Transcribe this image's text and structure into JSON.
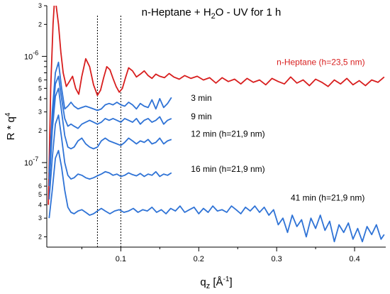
{
  "chart_data": {
    "type": "line",
    "title": {
      "prefix": "n-Heptane + H",
      "sub": "2",
      "suffix": "O - UV for 1 h"
    },
    "xlabel": {
      "base": "q",
      "sub": "z",
      "unit_open": " [Å",
      "sup": "-1",
      "unit_close": "]"
    },
    "ylabel": {
      "base": "R * q",
      "sup": "4"
    },
    "xlim": [
      0.005,
      0.44
    ],
    "ylim": [
      1.6e-08,
      3e-06
    ],
    "yscale": "log",
    "grid": false,
    "x_ticks": [
      {
        "value": 0.1,
        "label": "0.1"
      },
      {
        "value": 0.2,
        "label": "0.2"
      },
      {
        "value": 0.3,
        "label": "0.3"
      },
      {
        "value": 0.4,
        "label": "0.4"
      }
    ],
    "y_major_ticks": [
      {
        "value": 1e-06,
        "base": "10",
        "exp": "-6"
      },
      {
        "value": 1e-07,
        "base": "10",
        "exp": "-7"
      }
    ],
    "y_minor_tick_labels": [
      {
        "value": 3e-06,
        "label": "3"
      },
      {
        "value": 2e-06,
        "label": "2"
      },
      {
        "value": 6e-07,
        "label": "6"
      },
      {
        "value": 5e-07,
        "label": "5"
      },
      {
        "value": 4e-07,
        "label": "4"
      },
      {
        "value": 3e-07,
        "label": "3"
      },
      {
        "value": 2e-07,
        "label": "2"
      },
      {
        "value": 6e-08,
        "label": "6"
      },
      {
        "value": 5e-08,
        "label": "5"
      },
      {
        "value": 4e-08,
        "label": "4"
      },
      {
        "value": 3e-08,
        "label": "3"
      },
      {
        "value": 2e-08,
        "label": "2"
      }
    ],
    "reference_lines_x": [
      0.07,
      0.1
    ],
    "series": [
      {
        "name": "n-Heptane (h=23,5 nm)",
        "color": "#d81e1e",
        "label_at": [
          0.3,
          8.3e-07
        ],
        "x": [
          0.007,
          0.01,
          0.013,
          0.015,
          0.017,
          0.02,
          0.023,
          0.026,
          0.03,
          0.034,
          0.038,
          0.042,
          0.046,
          0.05,
          0.055,
          0.06,
          0.065,
          0.07,
          0.074,
          0.078,
          0.082,
          0.086,
          0.09,
          0.094,
          0.098,
          0.102,
          0.106,
          0.11,
          0.115,
          0.12,
          0.125,
          0.13,
          0.135,
          0.14,
          0.145,
          0.15,
          0.156,
          0.162,
          0.168,
          0.175,
          0.182,
          0.19,
          0.198,
          0.206,
          0.214,
          0.222,
          0.23,
          0.238,
          0.246,
          0.254,
          0.262,
          0.27,
          0.278,
          0.286,
          0.294,
          0.302,
          0.31,
          0.318,
          0.326,
          0.334,
          0.342,
          0.35,
          0.358,
          0.366,
          0.374,
          0.382,
          0.39,
          0.398,
          0.406,
          0.414,
          0.422,
          0.43,
          0.438
        ],
        "y": [
          4e-08,
          5e-07,
          2e-06,
          3.5e-06,
          3e-06,
          2e-06,
          1.1e-06,
          7e-07,
          5.2e-07,
          5.8e-07,
          6.5e-07,
          5e-07,
          4.4e-07,
          6.5e-07,
          9.5e-07,
          8e-07,
          5.4e-07,
          4.3e-07,
          4.8e-07,
          6.3e-07,
          8e-07,
          7.5e-07,
          6.2e-07,
          5.2e-07,
          4.6e-07,
          5e-07,
          6.3e-07,
          7.8e-07,
          7.3e-07,
          6.4e-07,
          6.8e-07,
          7.3e-07,
          6.6e-07,
          6.2e-07,
          6.8e-07,
          6.5e-07,
          6.3e-07,
          6.9e-07,
          6.4e-07,
          6.1e-07,
          6.6e-07,
          6.2e-07,
          6.5e-07,
          6e-07,
          6.3e-07,
          5.6e-07,
          6.3e-07,
          5.8e-07,
          6.1e-07,
          5.5e-07,
          6.2e-07,
          5.7e-07,
          6e-07,
          5.4e-07,
          6.2e-07,
          5.8e-07,
          5.5e-07,
          6.4e-07,
          5.6e-07,
          6e-07,
          5.3e-07,
          6.1e-07,
          5.7e-07,
          5.2e-07,
          6e-07,
          5.5e-07,
          6.2e-07,
          5.4e-07,
          5.9e-07,
          5.3e-07,
          6e-07,
          5.7e-07,
          6.4e-07
        ]
      },
      {
        "name": "3 min",
        "color": "#2f73d6",
        "label_at": [
          0.19,
          3.8e-07
        ],
        "x": [
          0.008,
          0.012,
          0.016,
          0.02,
          0.024,
          0.028,
          0.032,
          0.036,
          0.04,
          0.045,
          0.05,
          0.055,
          0.06,
          0.065,
          0.07,
          0.075,
          0.08,
          0.085,
          0.09,
          0.095,
          0.1,
          0.105,
          0.11,
          0.115,
          0.12,
          0.125,
          0.13,
          0.135,
          0.14,
          0.145,
          0.15,
          0.155,
          0.16,
          0.165
        ],
        "y": [
          8e-08,
          3e-07,
          7e-07,
          8.8e-07,
          5e-07,
          3.2e-07,
          3.4e-07,
          3.7e-07,
          3.4e-07,
          3.2e-07,
          3.3e-07,
          3.4e-07,
          3.3e-07,
          3.2e-07,
          3.1e-07,
          3.2e-07,
          3.5e-07,
          3.6e-07,
          3.5e-07,
          3.7e-07,
          3.5e-07,
          3.4e-07,
          3.7e-07,
          3.5e-07,
          3.2e-07,
          3.6e-07,
          3.4e-07,
          3.3e-07,
          3.9e-07,
          3.2e-07,
          4e-07,
          3.3e-07,
          3.6e-07,
          4.1e-07
        ]
      },
      {
        "name": "9 min",
        "color": "#2f73d6",
        "label_at": [
          0.19,
          2.55e-07
        ],
        "x": [
          0.008,
          0.012,
          0.016,
          0.02,
          0.024,
          0.028,
          0.032,
          0.036,
          0.04,
          0.045,
          0.05,
          0.055,
          0.06,
          0.065,
          0.07,
          0.075,
          0.08,
          0.085,
          0.09,
          0.095,
          0.1,
          0.105,
          0.11,
          0.115,
          0.12,
          0.125,
          0.13,
          0.135,
          0.14,
          0.145,
          0.15,
          0.155,
          0.16,
          0.165
        ],
        "y": [
          7e-08,
          2.5e-07,
          5.5e-07,
          6.5e-07,
          4e-07,
          2.6e-07,
          2.2e-07,
          2.3e-07,
          2.2e-07,
          2.1e-07,
          2.3e-07,
          2.4e-07,
          2.5e-07,
          2.4e-07,
          2.3e-07,
          2.4e-07,
          2.6e-07,
          2.5e-07,
          2.6e-07,
          2.5e-07,
          2.4e-07,
          2.6e-07,
          2.5e-07,
          2.4e-07,
          2.6e-07,
          2.3e-07,
          2.5e-07,
          2.6e-07,
          2.4e-07,
          2.5e-07,
          2.7e-07,
          2.3e-07,
          2.5e-07,
          2.6e-07
        ]
      },
      {
        "name": "12 min (h=21,9 nm)",
        "color": "#2f73d6",
        "label_at": [
          0.19,
          1.75e-07
        ],
        "x": [
          0.008,
          0.012,
          0.016,
          0.02,
          0.024,
          0.028,
          0.032,
          0.036,
          0.04,
          0.045,
          0.05,
          0.055,
          0.06,
          0.065,
          0.07,
          0.075,
          0.08,
          0.085,
          0.09,
          0.095,
          0.1,
          0.105,
          0.11,
          0.115,
          0.12,
          0.125,
          0.13,
          0.135,
          0.14,
          0.145,
          0.15,
          0.155,
          0.16,
          0.165
        ],
        "y": [
          6e-08,
          2e-07,
          4.2e-07,
          5e-07,
          3e-07,
          1.8e-07,
          1.4e-07,
          1.35e-07,
          1.4e-07,
          1.6e-07,
          1.7e-07,
          1.5e-07,
          1.4e-07,
          1.35e-07,
          1.4e-07,
          1.6e-07,
          1.7e-07,
          1.6e-07,
          1.55e-07,
          1.5e-07,
          1.45e-07,
          1.55e-07,
          1.7e-07,
          1.6e-07,
          1.5e-07,
          1.6e-07,
          1.55e-07,
          1.65e-07,
          1.5e-07,
          1.55e-07,
          1.7e-07,
          1.5e-07,
          1.6e-07,
          1.65e-07
        ]
      },
      {
        "name": "16 min (h=21,9 nm)",
        "color": "#2f73d6",
        "label_at": [
          0.19,
          8.2e-08
        ],
        "x": [
          0.008,
          0.012,
          0.016,
          0.02,
          0.024,
          0.028,
          0.032,
          0.036,
          0.04,
          0.045,
          0.05,
          0.055,
          0.06,
          0.065,
          0.07,
          0.075,
          0.08,
          0.085,
          0.09,
          0.095,
          0.1,
          0.105,
          0.11,
          0.115,
          0.12,
          0.125,
          0.13,
          0.135,
          0.14,
          0.145,
          0.15,
          0.155,
          0.16,
          0.165
        ],
        "y": [
          4.5e-08,
          1.1e-07,
          2.3e-07,
          2.8e-07,
          1.7e-07,
          1e-07,
          7.6e-08,
          7e-08,
          7.2e-08,
          7.8e-08,
          7.6e-08,
          7.2e-08,
          7e-08,
          7.2e-08,
          7.5e-08,
          7.8e-08,
          8.2e-08,
          8e-08,
          7.6e-08,
          7.8e-08,
          7.4e-08,
          7.6e-08,
          8e-08,
          7.7e-08,
          7.5e-08,
          7.9e-08,
          7.4e-08,
          7.8e-08,
          7.6e-08,
          8.2e-08,
          7.4e-08,
          7.8e-08,
          7.6e-08,
          8e-08
        ]
      },
      {
        "name": "41 min (h=21,9 nm)",
        "color": "#2f73d6",
        "label_at": [
          0.318,
          4.4e-08
        ],
        "x": [
          0.008,
          0.012,
          0.016,
          0.02,
          0.024,
          0.028,
          0.032,
          0.036,
          0.04,
          0.045,
          0.05,
          0.055,
          0.06,
          0.065,
          0.07,
          0.075,
          0.08,
          0.086,
          0.092,
          0.098,
          0.104,
          0.11,
          0.116,
          0.122,
          0.128,
          0.134,
          0.14,
          0.146,
          0.152,
          0.158,
          0.164,
          0.17,
          0.176,
          0.182,
          0.188,
          0.194,
          0.2,
          0.206,
          0.212,
          0.218,
          0.224,
          0.23,
          0.236,
          0.242,
          0.248,
          0.254,
          0.26,
          0.266,
          0.272,
          0.278,
          0.284,
          0.29,
          0.296,
          0.302,
          0.308,
          0.314,
          0.32,
          0.326,
          0.332,
          0.338,
          0.344,
          0.35,
          0.356,
          0.362,
          0.368,
          0.374,
          0.38,
          0.386,
          0.392,
          0.398,
          0.404,
          0.41,
          0.416,
          0.422,
          0.428,
          0.434,
          0.438
        ],
        "y": [
          3e-08,
          5.5e-08,
          1.1e-07,
          1.3e-07,
          9e-08,
          5.5e-08,
          3.8e-08,
          3.4e-08,
          3.3e-08,
          3.5e-08,
          3.6e-08,
          3.4e-08,
          3.2e-08,
          3.3e-08,
          3.5e-08,
          3.7e-08,
          3.5e-08,
          3.3e-08,
          3.5e-08,
          3.6e-08,
          3.4e-08,
          3.5e-08,
          3.7e-08,
          3.4e-08,
          3.6e-08,
          3.5e-08,
          3.8e-08,
          3.4e-08,
          3.6e-08,
          3.3e-08,
          3.7e-08,
          3.5e-08,
          3.9e-08,
          3.4e-08,
          3.6e-08,
          3.8e-08,
          3.3e-08,
          3.7e-08,
          3.4e-08,
          3.9e-08,
          3.5e-08,
          3.6e-08,
          3.4e-08,
          3.9e-08,
          3.6e-08,
          3.3e-08,
          3.8e-08,
          3.5e-08,
          3.9e-08,
          3.4e-08,
          3.8e-08,
          3.2e-08,
          3.6e-08,
          2.6e-08,
          3e-08,
          2.2e-08,
          3.2e-08,
          2.5e-08,
          2.9e-08,
          2e-08,
          3e-08,
          2.4e-08,
          3.2e-08,
          2.3e-08,
          2.8e-08,
          1.8e-08,
          2.6e-08,
          2.2e-08,
          2.7e-08,
          1.9e-08,
          2.4e-08,
          1.8e-08,
          2.5e-08,
          2.1e-08,
          2.6e-08,
          1.9e-08,
          2.1e-08
        ]
      }
    ]
  }
}
